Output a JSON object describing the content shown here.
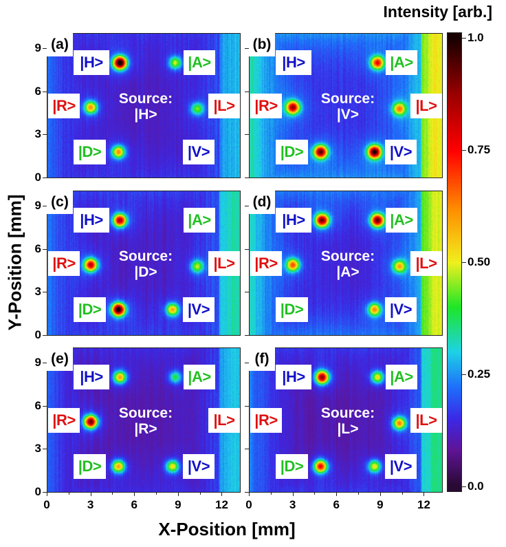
{
  "chart_data": {
    "type": "heatmap",
    "title": "Intensity [arb.]",
    "xlabel": "X-Position [mm]",
    "ylabel": "Y-Position [mm]",
    "xlim": [
      0,
      13.25
    ],
    "ylim": [
      0,
      10.05
    ],
    "xticks": [
      "0",
      "3",
      "6",
      "9",
      "12"
    ],
    "yticks": [
      "0",
      "3",
      "6",
      "9"
    ],
    "colorbar": {
      "range": [
        0,
        1
      ],
      "ticks": [
        "0.0",
        "0.25",
        "0.50",
        "0.75",
        "1.0"
      ]
    },
    "state_labels": {
      "H": "|H>",
      "A": "|A>",
      "R": "|R>",
      "L": "|L>",
      "D": "|D>",
      "V": "|V>"
    },
    "spot_positions_mm": {
      "H": [
        5.0,
        8.0
      ],
      "A": [
        8.8,
        8.0
      ],
      "R": [
        3.0,
        4.9
      ],
      "L": [
        10.3,
        4.8
      ],
      "D": [
        4.9,
        1.8
      ],
      "V": [
        8.6,
        1.8
      ]
    },
    "source_prefix": "Source:",
    "panels": [
      {
        "label": "(a)",
        "source": "|H>",
        "background_level": 0.12,
        "edge_level": 0.22,
        "spots": {
          "H": 0.88,
          "A": 0.33,
          "R": 0.45,
          "L": 0.28,
          "D": 0.45,
          "V": 0.0
        }
      },
      {
        "label": "(b)",
        "source": "|V>",
        "background_level": 0.16,
        "edge_level": 0.38,
        "spots": {
          "H": 0.0,
          "A": 0.55,
          "R": 0.65,
          "L": 0.4,
          "D": 0.72,
          "V": 0.78
        }
      },
      {
        "label": "(c)",
        "source": "|D>",
        "background_level": 0.12,
        "edge_level": 0.25,
        "spots": {
          "H": 0.68,
          "A": 0.0,
          "R": 0.65,
          "L": 0.3,
          "D": 0.85,
          "V": 0.42
        }
      },
      {
        "label": "(d)",
        "source": "|A>",
        "background_level": 0.14,
        "edge_level": 0.36,
        "spots": {
          "H": 0.72,
          "A": 0.72,
          "R": 0.48,
          "L": 0.38,
          "D": 0.0,
          "V": 0.42
        }
      },
      {
        "label": "(e)",
        "source": "|R>",
        "background_level": 0.1,
        "edge_level": 0.22,
        "spots": {
          "H": 0.45,
          "A": 0.25,
          "R": 0.75,
          "L": 0.0,
          "D": 0.45,
          "V": 0.38
        }
      },
      {
        "label": "(f)",
        "source": "|L>",
        "background_level": 0.1,
        "edge_level": 0.26,
        "spots": {
          "H": 0.72,
          "A": 0.38,
          "R": 0.0,
          "L": 0.45,
          "D": 0.6,
          "V": 0.38
        }
      }
    ],
    "label_colors": {
      "H": "#1010c8",
      "V": "#1010c8",
      "A": "#22c022",
      "D": "#22c022",
      "R": "#e01010",
      "L": "#e01010"
    }
  }
}
